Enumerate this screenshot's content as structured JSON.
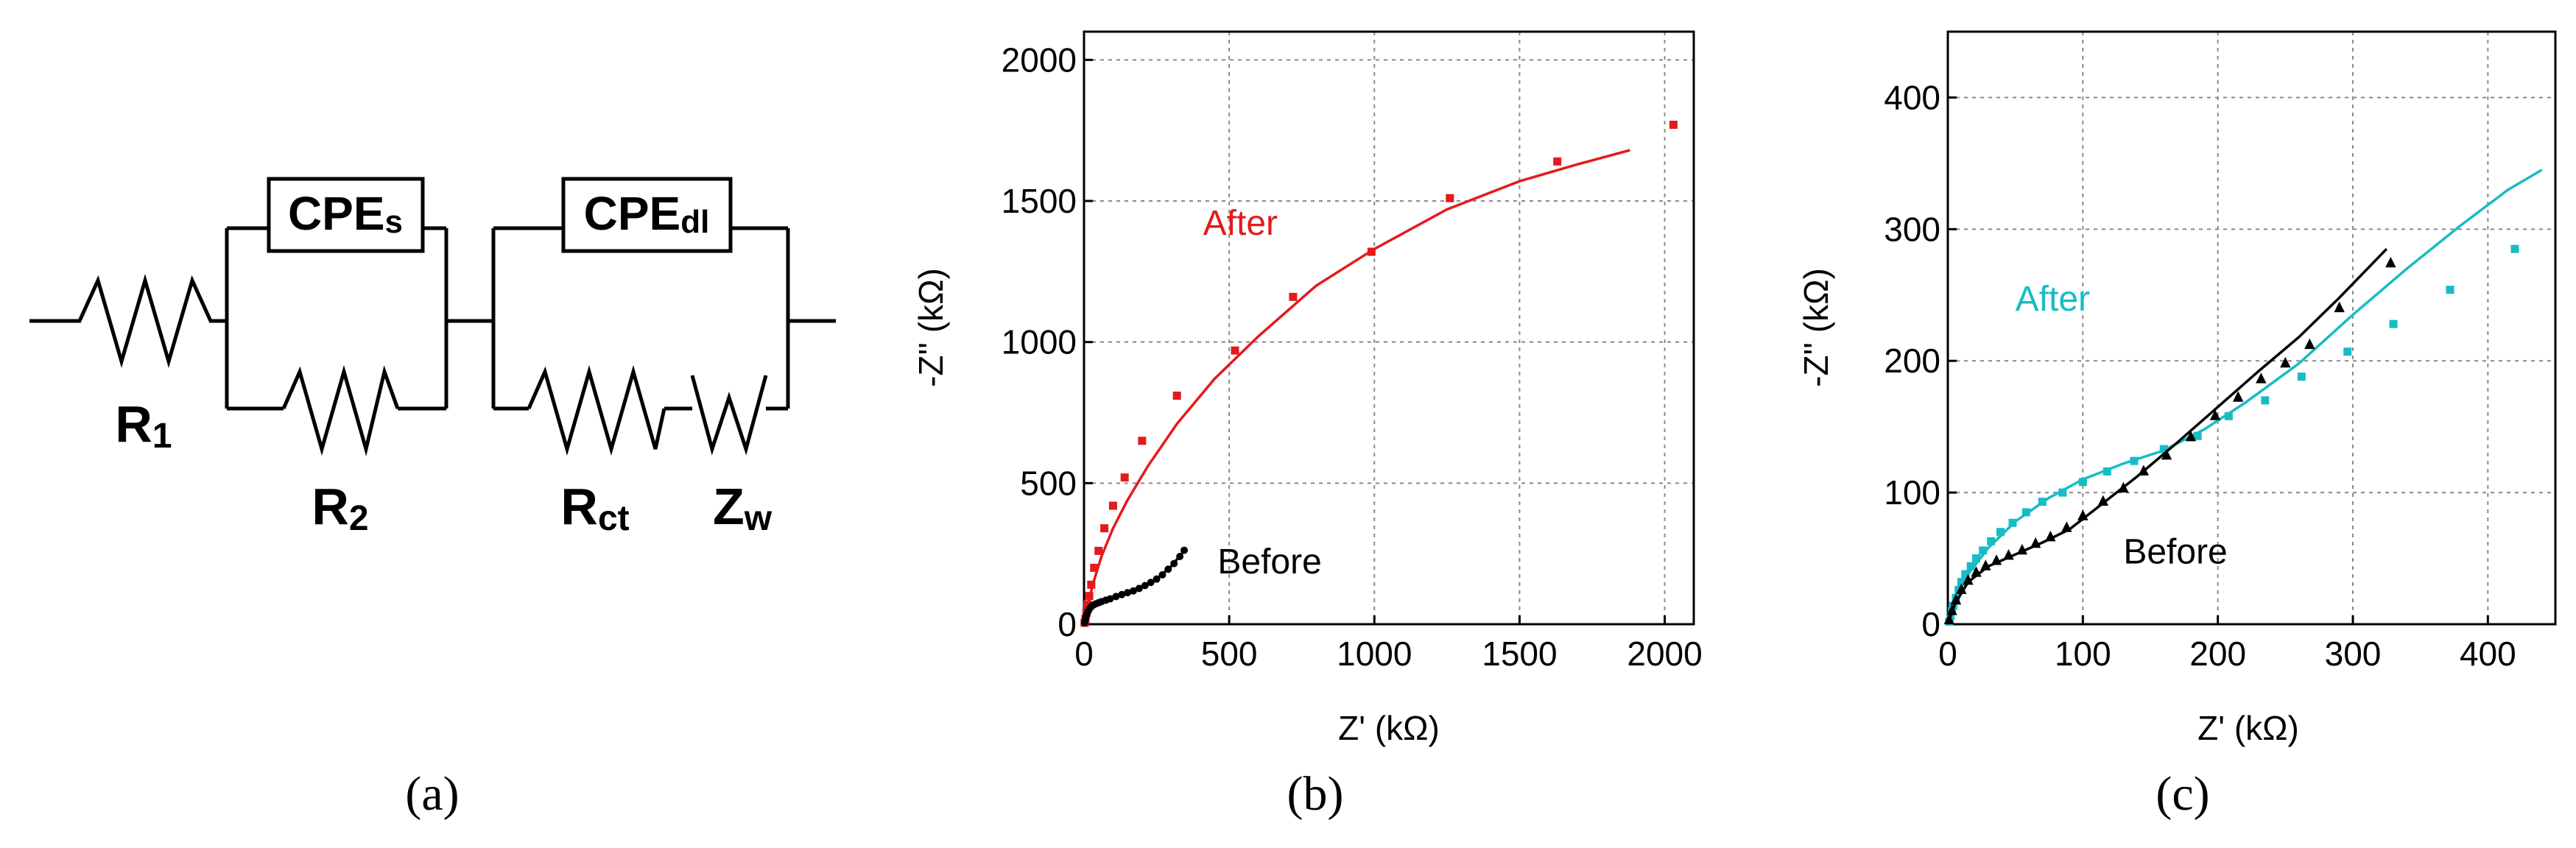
{
  "figure": {
    "panel_labels": [
      "(a)",
      "(b)",
      "(c)"
    ]
  },
  "circuit": {
    "elements": {
      "R1": {
        "main": "R",
        "sub": "1"
      },
      "R2": {
        "main": "R",
        "sub": "2"
      },
      "Rct": {
        "main": "R",
        "sub": "ct"
      },
      "Zw": {
        "main": "Z",
        "sub": "w"
      },
      "CPEs": {
        "main": "CPE",
        "sub": "s"
      },
      "CPEdl": {
        "main": "CPE",
        "sub": "dl"
      }
    }
  },
  "chart_data": [
    {
      "panel": "b",
      "type": "scatter",
      "xlabel": "Z' (kΩ)",
      "ylabel": "-Z'' (kΩ)",
      "xlim": [
        0,
        2100
      ],
      "ylim": [
        0,
        2100
      ],
      "xticks": [
        0,
        500,
        1000,
        1500,
        2000
      ],
      "yticks": [
        0,
        500,
        1000,
        1500,
        2000
      ],
      "grid": true,
      "series": [
        {
          "name": "After",
          "color": "#e41a1c",
          "marker": "square",
          "points": [
            [
              2,
              5
            ],
            [
              5,
              20
            ],
            [
              8,
              40
            ],
            [
              12,
              70
            ],
            [
              18,
              100
            ],
            [
              25,
              140
            ],
            [
              35,
              200
            ],
            [
              50,
              260
            ],
            [
              70,
              340
            ],
            [
              100,
              420
            ],
            [
              140,
              520
            ],
            [
              200,
              650
            ],
            [
              320,
              810
            ],
            [
              520,
              970
            ],
            [
              720,
              1160
            ],
            [
              990,
              1320
            ],
            [
              1260,
              1510
            ],
            [
              1630,
              1640
            ],
            [
              2030,
              1770
            ]
          ],
          "fit": [
            [
              0,
              0
            ],
            [
              10,
              50
            ],
            [
              30,
              140
            ],
            [
              60,
              240
            ],
            [
              100,
              340
            ],
            [
              150,
              440
            ],
            [
              220,
              560
            ],
            [
              320,
              710
            ],
            [
              450,
              870
            ],
            [
              600,
              1020
            ],
            [
              800,
              1200
            ],
            [
              1000,
              1330
            ],
            [
              1250,
              1470
            ],
            [
              1500,
              1570
            ],
            [
              1700,
              1630
            ],
            [
              1880,
              1680
            ]
          ]
        },
        {
          "name": "Before",
          "color": "#000000",
          "marker": "dot",
          "points": [
            [
              2,
              5
            ],
            [
              4,
              15
            ],
            [
              7,
              25
            ],
            [
              10,
              35
            ],
            [
              14,
              45
            ],
            [
              19,
              55
            ],
            [
              25,
              62
            ],
            [
              32,
              68
            ],
            [
              40,
              72
            ],
            [
              50,
              76
            ],
            [
              60,
              80
            ],
            [
              75,
              85
            ],
            [
              90,
              90
            ],
            [
              110,
              98
            ],
            [
              130,
              105
            ],
            [
              150,
              112
            ],
            [
              170,
              118
            ],
            [
              190,
              127
            ],
            [
              210,
              137
            ],
            [
              230,
              148
            ],
            [
              250,
              160
            ],
            [
              270,
              175
            ],
            [
              290,
              195
            ],
            [
              310,
              215
            ],
            [
              330,
              240
            ],
            [
              345,
              262
            ]
          ],
          "fit": [
            [
              0,
              0
            ],
            [
              10,
              35
            ],
            [
              30,
              65
            ],
            [
              60,
              80
            ],
            [
              100,
              92
            ],
            [
              150,
              108
            ],
            [
              200,
              130
            ],
            [
              250,
              160
            ],
            [
              300,
              205
            ],
            [
              345,
              260
            ]
          ]
        }
      ],
      "annotations": [
        {
          "text": "After",
          "x": 410,
          "y": 1380,
          "color": "#e41a1c"
        },
        {
          "text": "Before",
          "x": 460,
          "y": 180,
          "color": "#000000"
        }
      ]
    },
    {
      "panel": "c",
      "type": "scatter",
      "xlabel": "Z' (kΩ)",
      "ylabel": "-Z'' (kΩ)",
      "xlim": [
        0,
        450
      ],
      "ylim": [
        0,
        450
      ],
      "xticks": [
        0,
        100,
        200,
        300,
        400
      ],
      "yticks": [
        0,
        100,
        200,
        300,
        400
      ],
      "grid": true,
      "series": [
        {
          "name": "After",
          "color": "#17bcc4",
          "marker": "square",
          "points": [
            [
              1,
              2
            ],
            [
              2,
              6
            ],
            [
              3,
              10
            ],
            [
              4,
              14
            ],
            [
              6,
              20
            ],
            [
              8,
              26
            ],
            [
              10,
              32
            ],
            [
              13,
              38
            ],
            [
              17,
              44
            ],
            [
              21,
              50
            ],
            [
              26,
              56
            ],
            [
              32,
              63
            ],
            [
              39,
              70
            ],
            [
              48,
              77
            ],
            [
              58,
              85
            ],
            [
              70,
              93
            ],
            [
              85,
              100
            ],
            [
              100,
              108
            ],
            [
              118,
              116
            ],
            [
              138,
              124
            ],
            [
              160,
              133
            ],
            [
              185,
              143
            ],
            [
              208,
              158
            ],
            [
              235,
              170
            ],
            [
              262,
              188
            ],
            [
              296,
              207
            ],
            [
              330,
              228
            ],
            [
              372,
              254
            ],
            [
              420,
              285
            ]
          ],
          "fit": [
            [
              0,
              0
            ],
            [
              5,
              18
            ],
            [
              15,
              38
            ],
            [
              30,
              58
            ],
            [
              50,
              78
            ],
            [
              75,
              96
            ],
            [
              100,
              110
            ],
            [
              130,
              122
            ],
            [
              160,
              132
            ],
            [
              190,
              148
            ],
            [
              220,
              168
            ],
            [
              260,
              198
            ],
            [
              300,
              235
            ],
            [
              340,
              270
            ],
            [
              380,
              303
            ],
            [
              415,
              330
            ],
            [
              440,
              345
            ]
          ]
        },
        {
          "name": "Before",
          "color": "#000000",
          "marker": "triangle",
          "points": [
            [
              1,
              3
            ],
            [
              3,
              10
            ],
            [
              6,
              18
            ],
            [
              10,
              26
            ],
            [
              15,
              33
            ],
            [
              21,
              39
            ],
            [
              28,
              44
            ],
            [
              36,
              48
            ],
            [
              45,
              52
            ],
            [
              55,
              56
            ],
            [
              65,
              61
            ],
            [
              76,
              66
            ],
            [
              88,
              73
            ],
            [
              100,
              82
            ],
            [
              115,
              93
            ],
            [
              130,
              103
            ],
            [
              145,
              116
            ],
            [
              162,
              128
            ],
            [
              180,
              142
            ],
            [
              198,
              158
            ],
            [
              215,
              172
            ],
            [
              232,
              186
            ],
            [
              250,
              198
            ],
            [
              268,
              212
            ],
            [
              290,
              240
            ],
            [
              328,
              274
            ]
          ],
          "fit": [
            [
              0,
              0
            ],
            [
              5,
              15
            ],
            [
              15,
              32
            ],
            [
              30,
              44
            ],
            [
              50,
              53
            ],
            [
              70,
              62
            ],
            [
              90,
              72
            ],
            [
              110,
              88
            ],
            [
              140,
              112
            ],
            [
              170,
              138
            ],
            [
              200,
              165
            ],
            [
              230,
              192
            ],
            [
              260,
              218
            ],
            [
              290,
              248
            ],
            [
              325,
              285
            ]
          ]
        }
      ],
      "annotations": [
        {
          "text": "After",
          "x": 50,
          "y": 238,
          "color": "#17bcc4"
        },
        {
          "text": "Before",
          "x": 130,
          "y": 46,
          "color": "#000000"
        }
      ]
    }
  ]
}
